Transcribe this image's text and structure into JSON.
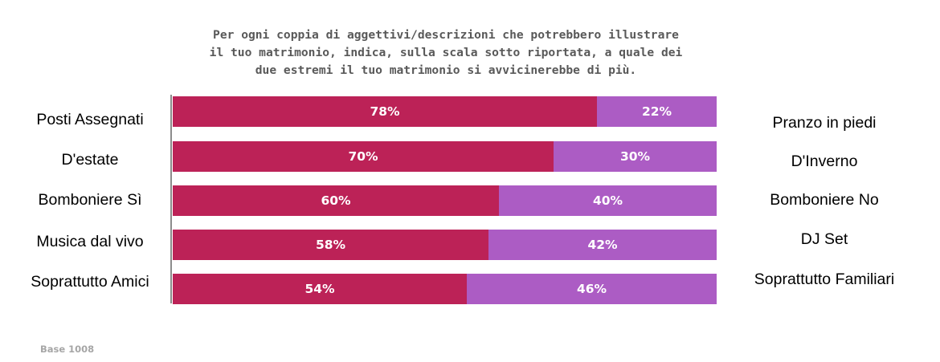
{
  "title_lines": [
    "Per ogni coppia di aggettivi/descrizioni che potrebbero illustrare",
    "il tuo matrimonio, indica, sulla scala sotto riportata, a quale dei",
    "due estremi il tuo matrimonio si avvicinerebbe di più."
  ],
  "base_note": "Base 1008",
  "chart_data": {
    "type": "bar",
    "orientation": "horizontal",
    "stacked": true,
    "percent_scale": 100,
    "colors": {
      "left": "#bc2257",
      "right": "#ac5cc4"
    },
    "rows": [
      {
        "left_label": "Posti Assegnati",
        "right_label": "Pranzo in piedi",
        "left_value": 78,
        "right_value": 22,
        "left_text": "78%",
        "right_text": "22%"
      },
      {
        "left_label": "D'estate",
        "right_label": "D'Inverno",
        "left_value": 70,
        "right_value": 30,
        "left_text": "70%",
        "right_text": "30%"
      },
      {
        "left_label": "Bomboniere Sì",
        "right_label": "Bomboniere No",
        "left_value": 60,
        "right_value": 40,
        "left_text": "60%",
        "right_text": "40%"
      },
      {
        "left_label": "Musica dal vivo",
        "right_label": "DJ Set",
        "left_value": 58,
        "right_value": 42,
        "left_text": "58%",
        "right_text": "42%"
      },
      {
        "left_label": "Soprattutto Amici",
        "right_label": "Soprattutto Familiari",
        "left_value": 54,
        "right_value": 46,
        "left_text": "54%",
        "right_text": "46%"
      }
    ]
  }
}
